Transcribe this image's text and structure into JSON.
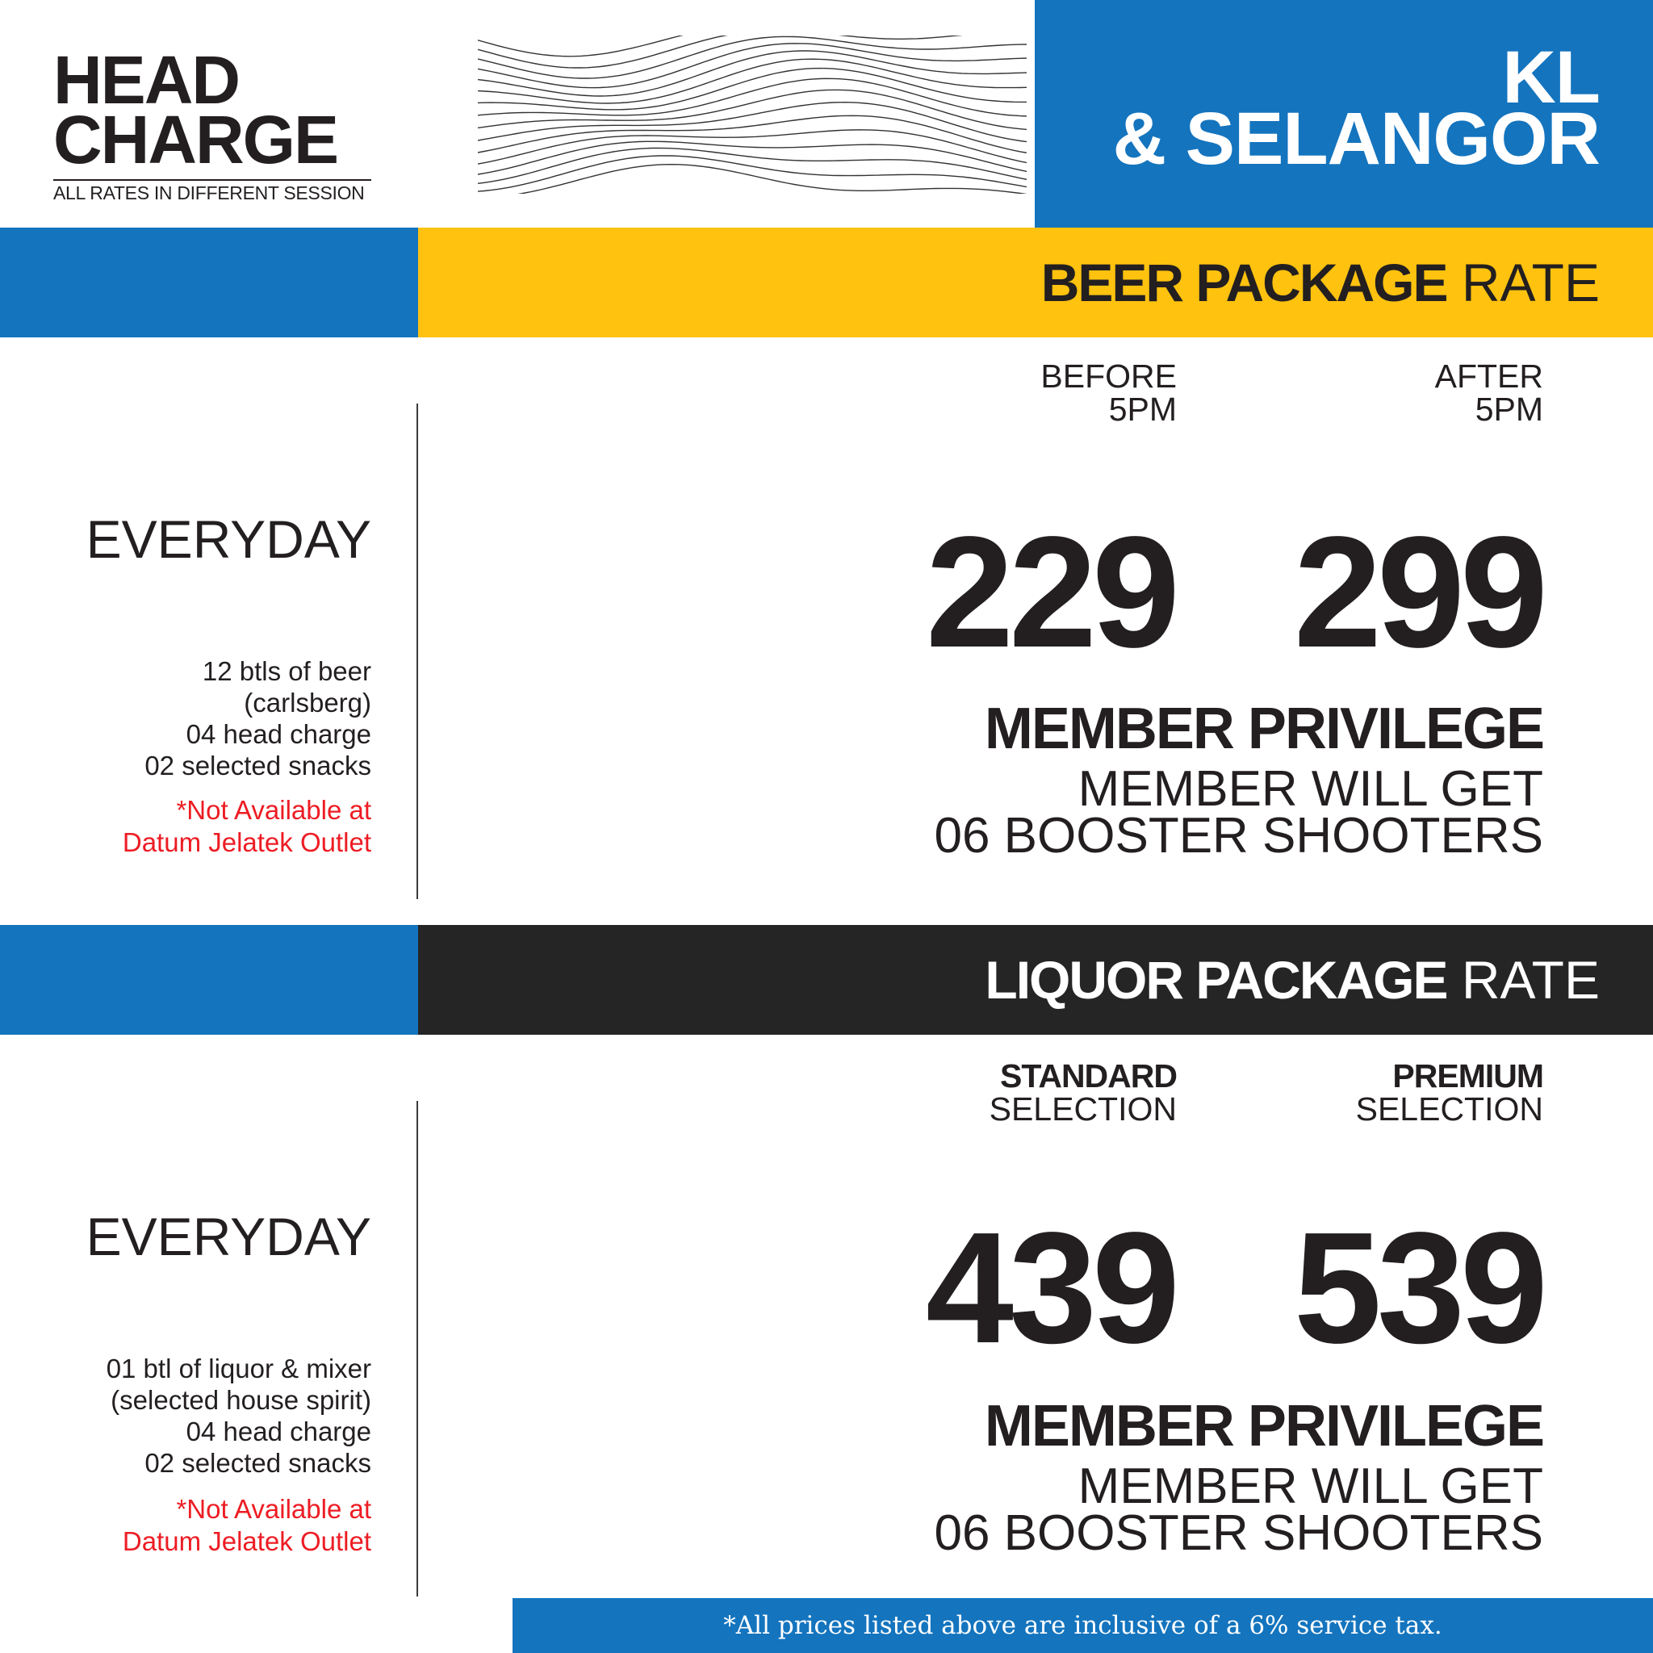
{
  "header": {
    "title_line1": "HEAD",
    "title_line2": "CHARGE",
    "subtitle": "ALL RATES IN DIFFERENT SESSION",
    "region_line1": "KL",
    "region_line2": "& SELANGOR"
  },
  "beer": {
    "title_bold": "BEER PACKAGE",
    "title_regular": "RATE",
    "col1_line1": "BEFORE",
    "col1_line2": "5PM",
    "col2_line1": "AFTER",
    "col2_line2": "5PM",
    "day": "EVERYDAY",
    "price1": "229",
    "price2": "299",
    "includes": [
      "12 btls of beer",
      "(carlsberg)",
      "04 head charge",
      "02 selected snacks"
    ],
    "note_line1": "*Not Available at",
    "note_line2": "Datum Jelatek Outlet",
    "member_title": "MEMBER PRIVILEGE",
    "member_line1": "MEMBER WILL GET",
    "member_line2": "06 BOOSTER SHOOTERS"
  },
  "liquor": {
    "title_bold": "LIQUOR PACKAGE",
    "title_regular": "RATE",
    "col1_bold": "STANDARD",
    "col1_regular": "SELECTION",
    "col2_bold": "PREMIUM",
    "col2_regular": "SELECTION",
    "day": "EVERYDAY",
    "price1": "439",
    "price2": "539",
    "includes": [
      "01 btl of liquor & mixer",
      "(selected house spirit)",
      "04 head charge",
      "02 selected snacks"
    ],
    "note_line1": "*Not Available at",
    "note_line2": "Datum Jelatek Outlet",
    "member_title": "MEMBER PRIVILEGE",
    "member_line1": "MEMBER WILL GET",
    "member_line2": "06 BOOSTER SHOOTERS"
  },
  "footer": {
    "text": "*All prices listed above are inclusive of a 6% service tax."
  },
  "colors": {
    "blue": "#1474be",
    "yellow": "#fec20f",
    "dark": "#252526",
    "red": "#ed1c24",
    "text": "#231f20"
  },
  "decor": {
    "pattern": "wavy-line-pattern"
  }
}
